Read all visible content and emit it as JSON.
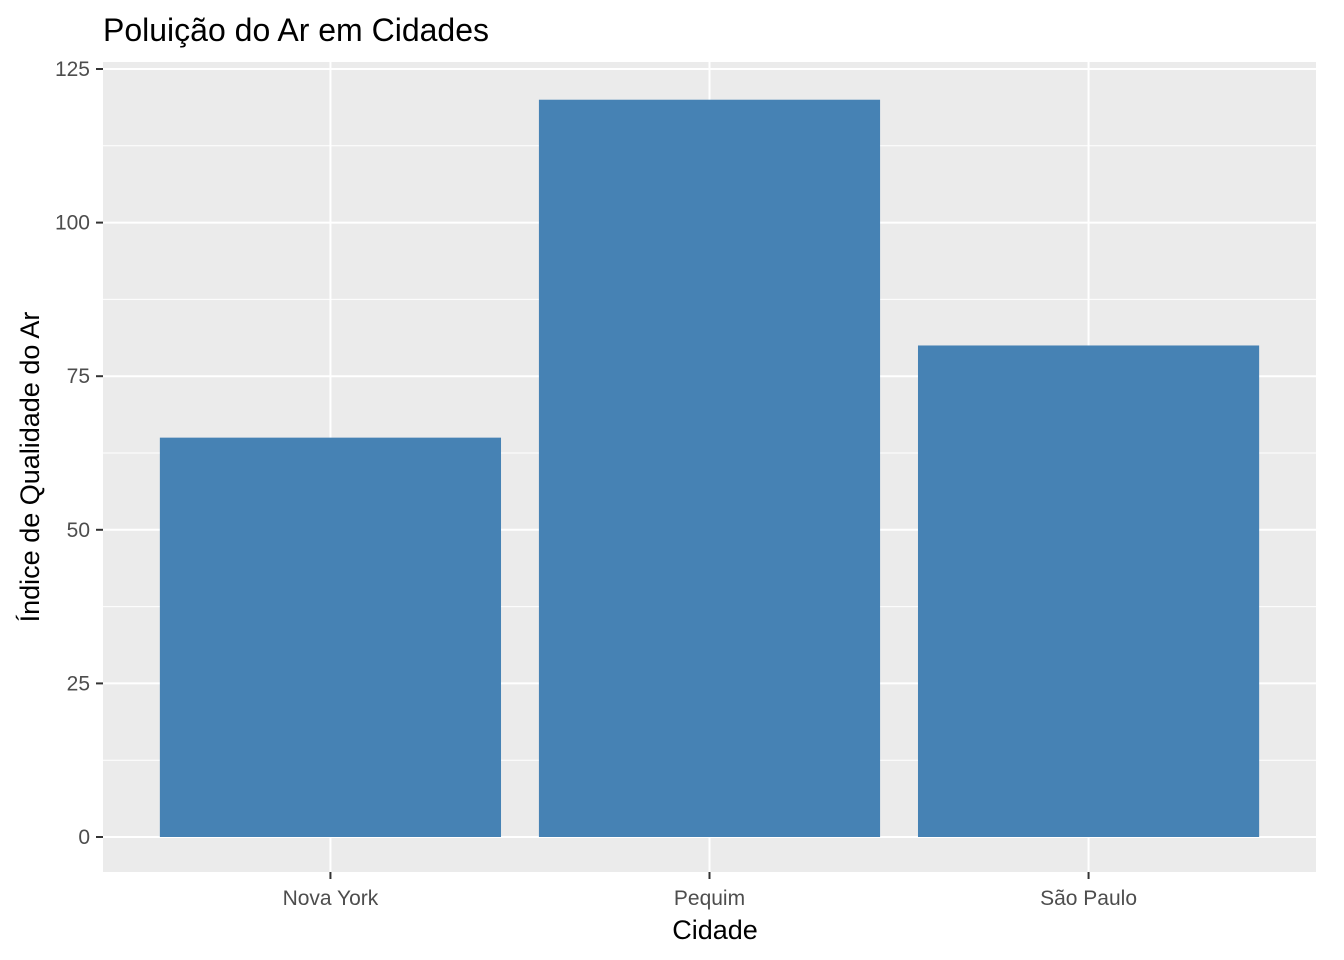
{
  "chart_data": {
    "type": "bar",
    "title": "Poluição do Ar em Cidades",
    "xlabel": "Cidade",
    "ylabel": "Índice de Qualidade do Ar",
    "categories": [
      "Nova York",
      "Pequim",
      "São Paulo"
    ],
    "values": [
      65,
      120,
      80
    ],
    "ylim": [
      -5.75,
      125
    ],
    "yticks": [
      0,
      25,
      50,
      75,
      100,
      125
    ],
    "grid": true,
    "legend": "none",
    "colors": {
      "bar": "#4682b4",
      "panel": "#ebebeb",
      "grid": "#ffffff",
      "tick_text": "#4d4d4d",
      "tick_mark": "#333333"
    }
  }
}
